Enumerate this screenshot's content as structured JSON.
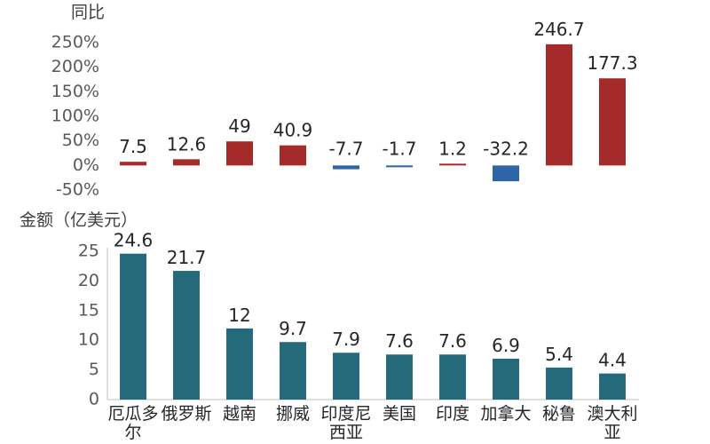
{
  "chart_data": [
    {
      "type": "bar",
      "ylabel": "同比",
      "y_unit": "%",
      "ylim": [
        -50,
        250
      ],
      "yticks": [
        "250%",
        "200%",
        "150%",
        "100%",
        "50%",
        "0%",
        "-50%"
      ],
      "ytick_values": [
        250,
        200,
        150,
        100,
        50,
        0,
        -50
      ],
      "categories": [
        "厄瓜多尔",
        "俄罗斯",
        "越南",
        "挪威",
        "印度尼西亚",
        "美国",
        "印度",
        "加拿大",
        "秘鲁",
        "澳大利亚"
      ],
      "values": [
        7.5,
        12.6,
        49,
        40.9,
        -7.7,
        -1.7,
        1.2,
        -32.2,
        246.7,
        177.3
      ],
      "data_labels": [
        "7.5",
        "12.6",
        "49",
        "40.9",
        "-7.7",
        "-1.7",
        "1.2",
        "-32.2",
        "246.7",
        "177.3"
      ],
      "colors": {
        "positive": "#a52a2a",
        "negative": "#2e64a8"
      },
      "grid": false
    },
    {
      "type": "bar",
      "ylabel": "金额（亿美元）",
      "ylim": [
        0,
        25
      ],
      "yticks": [
        "25",
        "20",
        "15",
        "10",
        "5",
        "0"
      ],
      "ytick_values": [
        25,
        20,
        15,
        10,
        5,
        0
      ],
      "categories": [
        "厄瓜多尔",
        "俄罗斯",
        "越南",
        "挪威",
        "印度尼西亚",
        "美国",
        "印度",
        "加拿大",
        "秘鲁",
        "澳大利亚"
      ],
      "category_label_lines": [
        [
          "厄瓜多",
          "尔"
        ],
        [
          "俄罗斯"
        ],
        [
          "越南"
        ],
        [
          "挪威"
        ],
        [
          "印度尼",
          "西亚"
        ],
        [
          "美国"
        ],
        [
          "印度"
        ],
        [
          "加拿大"
        ],
        [
          "秘鲁"
        ],
        [
          "澳大利",
          "亚"
        ]
      ],
      "values": [
        24.6,
        21.7,
        12,
        9.7,
        7.9,
        7.6,
        7.6,
        6.9,
        5.4,
        4.4
      ],
      "data_labels": [
        "24.6",
        "21.7",
        "12",
        "9.7",
        "7.9",
        "7.6",
        "7.6",
        "6.9",
        "5.4",
        "4.4"
      ],
      "colors": {
        "bar": "#256a7a"
      },
      "grid": false
    }
  ]
}
